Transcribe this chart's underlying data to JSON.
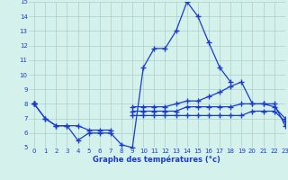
{
  "title": "Graphe des températures (°c)",
  "xlim": [
    -0.5,
    23
  ],
  "ylim": [
    5,
    15
  ],
  "xticks": [
    0,
    1,
    2,
    3,
    4,
    5,
    6,
    7,
    8,
    9,
    10,
    11,
    12,
    13,
    14,
    15,
    16,
    17,
    18,
    19,
    20,
    21,
    22,
    23
  ],
  "yticks": [
    5,
    6,
    7,
    8,
    9,
    10,
    11,
    12,
    13,
    14,
    15
  ],
  "bg_color": "#d4f1ec",
  "line_color": "#1a3ccc",
  "grid_color": "#aacfca",
  "lines": [
    [
      8.0,
      7.0,
      6.5,
      6.5,
      5.5,
      6.0,
      6.0,
      6.0,
      5.2,
      5.0,
      10.5,
      11.8,
      11.8,
      13.0,
      15.0,
      14.0,
      12.2,
      10.5,
      9.5,
      null,
      null,
      null,
      null,
      null
    ],
    [
      8.0,
      7.0,
      6.5,
      6.5,
      6.5,
      6.2,
      6.2,
      6.2,
      null,
      null,
      null,
      null,
      null,
      null,
      null,
      null,
      null,
      null,
      null,
      null,
      null,
      null,
      null,
      null
    ],
    [
      8.0,
      null,
      null,
      null,
      null,
      null,
      null,
      null,
      null,
      7.8,
      7.8,
      7.8,
      7.8,
      8.0,
      8.2,
      8.2,
      8.5,
      8.8,
      9.2,
      9.5,
      8.0,
      8.0,
      8.0,
      6.5
    ],
    [
      8.0,
      null,
      null,
      null,
      null,
      null,
      null,
      null,
      null,
      7.5,
      7.5,
      7.5,
      7.5,
      7.5,
      7.8,
      7.8,
      7.8,
      7.8,
      7.8,
      8.0,
      8.0,
      8.0,
      7.8,
      7.0
    ],
    [
      8.0,
      null,
      null,
      null,
      null,
      null,
      null,
      null,
      null,
      7.2,
      7.2,
      7.2,
      7.2,
      7.2,
      7.2,
      7.2,
      7.2,
      7.2,
      7.2,
      7.2,
      7.5,
      7.5,
      7.5,
      6.8
    ]
  ]
}
